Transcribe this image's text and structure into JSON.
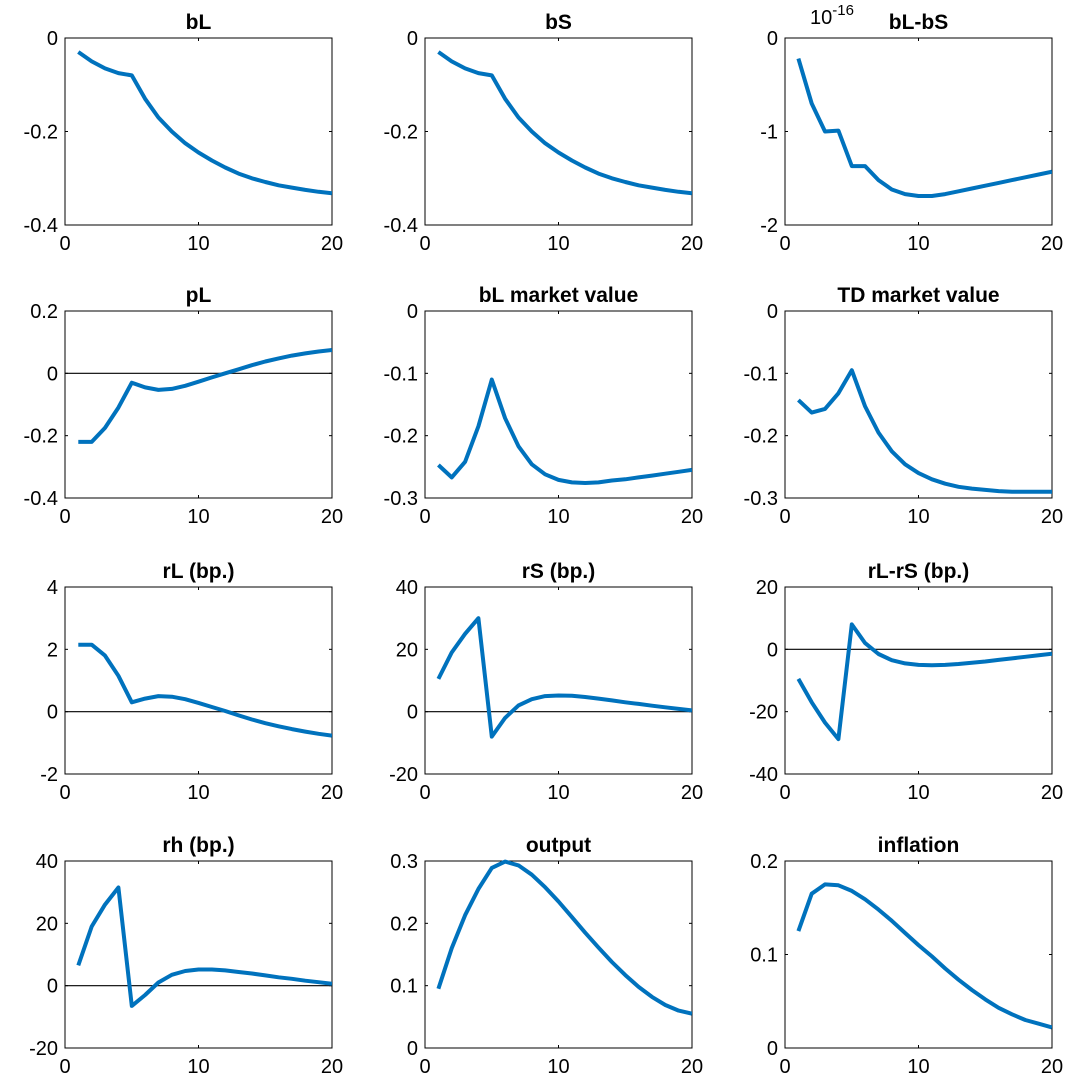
{
  "colors": {
    "series": "#0072BD",
    "axes": "#000000",
    "zero_line": "#000000",
    "background": "#ffffff"
  },
  "chart_data": [
    {
      "type": "line",
      "title": "bL",
      "xlabel": "",
      "ylabel": "",
      "xlim": [
        0,
        20
      ],
      "ylim": [
        -0.4,
        0
      ],
      "xticks": [
        "0",
        "10",
        "20"
      ],
      "yticks": [
        "-0.4",
        "-0.2",
        "0"
      ],
      "exponent": "",
      "zero_line": false,
      "series": [
        {
          "x": [
            1,
            2,
            3,
            4,
            5,
            6,
            7,
            8,
            9,
            10,
            11,
            12,
            13,
            14,
            15,
            16,
            17,
            18,
            19,
            20
          ],
          "values": [
            -0.03,
            -0.05,
            -0.065,
            -0.075,
            -0.08,
            -0.13,
            -0.17,
            -0.2,
            -0.225,
            -0.245,
            -0.262,
            -0.277,
            -0.29,
            -0.3,
            -0.308,
            -0.315,
            -0.32,
            -0.325,
            -0.329,
            -0.332
          ]
        }
      ]
    },
    {
      "type": "line",
      "title": "bS",
      "xlabel": "",
      "ylabel": "",
      "xlim": [
        0,
        20
      ],
      "ylim": [
        -0.4,
        0
      ],
      "xticks": [
        "0",
        "10",
        "20"
      ],
      "yticks": [
        "-0.4",
        "-0.2",
        "0"
      ],
      "exponent": "",
      "zero_line": false,
      "series": [
        {
          "x": [
            1,
            2,
            3,
            4,
            5,
            6,
            7,
            8,
            9,
            10,
            11,
            12,
            13,
            14,
            15,
            16,
            17,
            18,
            19,
            20
          ],
          "values": [
            -0.03,
            -0.05,
            -0.065,
            -0.075,
            -0.08,
            -0.13,
            -0.17,
            -0.2,
            -0.225,
            -0.245,
            -0.262,
            -0.277,
            -0.29,
            -0.3,
            -0.308,
            -0.315,
            -0.32,
            -0.325,
            -0.329,
            -0.332
          ]
        }
      ]
    },
    {
      "type": "line",
      "title": "bL-bS",
      "xlabel": "",
      "ylabel": "",
      "xlim": [
        0,
        20
      ],
      "ylim": [
        -2,
        0
      ],
      "xticks": [
        "0",
        "10",
        "20"
      ],
      "yticks": [
        "-2",
        "-1",
        "0"
      ],
      "exponent": "-16",
      "zero_line": false,
      "series": [
        {
          "x": [
            1,
            2,
            3,
            4,
            5,
            6,
            7,
            8,
            9,
            10,
            11,
            12,
            13,
            14,
            15,
            16,
            17,
            18,
            19,
            20
          ],
          "values": [
            -0.22,
            -0.7,
            -1.0,
            -0.99,
            -1.37,
            -1.37,
            -1.52,
            -1.62,
            -1.67,
            -1.69,
            -1.69,
            -1.67,
            -1.64,
            -1.61,
            -1.58,
            -1.55,
            -1.52,
            -1.49,
            -1.46,
            -1.43
          ]
        }
      ]
    },
    {
      "type": "line",
      "title": "pL",
      "xlabel": "",
      "ylabel": "",
      "xlim": [
        0,
        20
      ],
      "ylim": [
        -0.4,
        0.2
      ],
      "xticks": [
        "0",
        "10",
        "20"
      ],
      "yticks": [
        "-0.4",
        "-0.2",
        "0",
        "0.2"
      ],
      "exponent": "",
      "zero_line": true,
      "series": [
        {
          "x": [
            1,
            2,
            3,
            4,
            5,
            6,
            7,
            8,
            9,
            10,
            11,
            12,
            13,
            14,
            15,
            16,
            17,
            18,
            19,
            20
          ],
          "values": [
            -0.22,
            -0.22,
            -0.175,
            -0.11,
            -0.03,
            -0.045,
            -0.053,
            -0.05,
            -0.04,
            -0.027,
            -0.013,
            0.0,
            0.013,
            0.026,
            0.038,
            0.048,
            0.057,
            0.064,
            0.07,
            0.075
          ]
        }
      ]
    },
    {
      "type": "line",
      "title": "bL market value",
      "xlabel": "",
      "ylabel": "",
      "xlim": [
        0,
        20
      ],
      "ylim": [
        -0.3,
        0
      ],
      "xticks": [
        "0",
        "10",
        "20"
      ],
      "yticks": [
        "-0.3",
        "-0.2",
        "-0.1",
        "0"
      ],
      "exponent": "",
      "zero_line": false,
      "series": [
        {
          "x": [
            1,
            2,
            3,
            4,
            5,
            6,
            7,
            8,
            9,
            10,
            11,
            12,
            13,
            14,
            15,
            16,
            17,
            18,
            19,
            20
          ],
          "values": [
            -0.247,
            -0.267,
            -0.242,
            -0.185,
            -0.11,
            -0.172,
            -0.217,
            -0.246,
            -0.262,
            -0.271,
            -0.275,
            -0.276,
            -0.275,
            -0.272,
            -0.27,
            -0.267,
            -0.264,
            -0.261,
            -0.258,
            -0.255
          ]
        }
      ]
    },
    {
      "type": "line",
      "title": "TD market value",
      "xlabel": "",
      "ylabel": "",
      "xlim": [
        0,
        20
      ],
      "ylim": [
        -0.3,
        0
      ],
      "xticks": [
        "0",
        "10",
        "20"
      ],
      "yticks": [
        "-0.3",
        "-0.2",
        "-0.1",
        "0"
      ],
      "exponent": "",
      "zero_line": false,
      "series": [
        {
          "x": [
            1,
            2,
            3,
            4,
            5,
            6,
            7,
            8,
            9,
            10,
            11,
            12,
            13,
            14,
            15,
            16,
            17,
            18,
            19,
            20
          ],
          "values": [
            -0.143,
            -0.163,
            -0.157,
            -0.132,
            -0.095,
            -0.153,
            -0.195,
            -0.225,
            -0.246,
            -0.26,
            -0.27,
            -0.277,
            -0.282,
            -0.285,
            -0.287,
            -0.289,
            -0.29,
            -0.29,
            -0.29,
            -0.29
          ]
        }
      ]
    },
    {
      "type": "line",
      "title": "rL (bp.)",
      "xlabel": "",
      "ylabel": "",
      "xlim": [
        0,
        20
      ],
      "ylim": [
        -2,
        4
      ],
      "xticks": [
        "0",
        "10",
        "20"
      ],
      "yticks": [
        "-2",
        "0",
        "2",
        "4"
      ],
      "exponent": "",
      "zero_line": true,
      "series": [
        {
          "x": [
            1,
            2,
            3,
            4,
            5,
            6,
            7,
            8,
            9,
            10,
            11,
            12,
            13,
            14,
            15,
            16,
            17,
            18,
            19,
            20
          ],
          "values": [
            2.15,
            2.15,
            1.8,
            1.15,
            0.3,
            0.42,
            0.5,
            0.48,
            0.4,
            0.28,
            0.15,
            0.02,
            -0.12,
            -0.25,
            -0.37,
            -0.47,
            -0.56,
            -0.64,
            -0.71,
            -0.77
          ]
        }
      ]
    },
    {
      "type": "line",
      "title": "rS (bp.)",
      "xlabel": "",
      "ylabel": "",
      "xlim": [
        0,
        20
      ],
      "ylim": [
        -20,
        40
      ],
      "xticks": [
        "0",
        "10",
        "20"
      ],
      "yticks": [
        "-20",
        "0",
        "20",
        "40"
      ],
      "exponent": "",
      "zero_line": true,
      "series": [
        {
          "x": [
            1,
            2,
            3,
            4,
            5,
            6,
            7,
            8,
            9,
            10,
            11,
            12,
            13,
            14,
            15,
            16,
            17,
            18,
            19,
            20
          ],
          "values": [
            10.5,
            19,
            25,
            30,
            -8,
            -2,
            2,
            4,
            5,
            5.2,
            5.1,
            4.7,
            4.2,
            3.6,
            3.0,
            2.5,
            1.9,
            1.4,
            0.9,
            0.4
          ]
        }
      ]
    },
    {
      "type": "line",
      "title": "rL-rS (bp.)",
      "xlabel": "",
      "ylabel": "",
      "xlim": [
        0,
        20
      ],
      "ylim": [
        -40,
        20
      ],
      "xticks": [
        "0",
        "10",
        "20"
      ],
      "yticks": [
        "-40",
        "-20",
        "0",
        "20"
      ],
      "exponent": "",
      "zero_line": true,
      "series": [
        {
          "x": [
            1,
            2,
            3,
            4,
            5,
            6,
            7,
            8,
            9,
            10,
            11,
            12,
            13,
            14,
            15,
            16,
            17,
            18,
            19,
            20
          ],
          "values": [
            -9.5,
            -17,
            -23.5,
            -28.8,
            8,
            2,
            -1.5,
            -3.5,
            -4.5,
            -5,
            -5.1,
            -5,
            -4.7,
            -4.3,
            -3.9,
            -3.4,
            -2.9,
            -2.4,
            -1.9,
            -1.4
          ]
        }
      ]
    },
    {
      "type": "line",
      "title": "rh (bp.)",
      "xlabel": "",
      "ylabel": "",
      "xlim": [
        0,
        20
      ],
      "ylim": [
        -20,
        40
      ],
      "xticks": [
        "0",
        "10",
        "20"
      ],
      "yticks": [
        "-20",
        "0",
        "20",
        "40"
      ],
      "exponent": "",
      "zero_line": true,
      "series": [
        {
          "x": [
            1,
            2,
            3,
            4,
            5,
            6,
            7,
            8,
            9,
            10,
            11,
            12,
            13,
            14,
            15,
            16,
            17,
            18,
            19,
            20
          ],
          "values": [
            6.5,
            19,
            26,
            31.5,
            -6.5,
            -3,
            1,
            3.5,
            4.7,
            5.2,
            5.2,
            4.9,
            4.4,
            3.9,
            3.3,
            2.7,
            2.2,
            1.6,
            1.1,
            0.6
          ]
        }
      ]
    },
    {
      "type": "line",
      "title": "output",
      "xlabel": "",
      "ylabel": "",
      "xlim": [
        0,
        20
      ],
      "ylim": [
        0,
        0.3
      ],
      "xticks": [
        "0",
        "10",
        "20"
      ],
      "yticks": [
        "0",
        "0.1",
        "0.2",
        "0.3"
      ],
      "exponent": "",
      "zero_line": false,
      "series": [
        {
          "x": [
            1,
            2,
            3,
            4,
            5,
            6,
            7,
            8,
            9,
            10,
            11,
            12,
            13,
            14,
            15,
            16,
            17,
            18,
            19,
            20
          ],
          "values": [
            0.095,
            0.16,
            0.213,
            0.255,
            0.289,
            0.299,
            0.293,
            0.278,
            0.258,
            0.235,
            0.21,
            0.185,
            0.161,
            0.138,
            0.117,
            0.098,
            0.082,
            0.069,
            0.06,
            0.055
          ]
        }
      ]
    },
    {
      "type": "line",
      "title": "inflation",
      "xlabel": "",
      "ylabel": "",
      "xlim": [
        0,
        20
      ],
      "ylim": [
        0,
        0.2
      ],
      "xticks": [
        "0",
        "10",
        "20"
      ],
      "yticks": [
        "0",
        "0.1",
        "0.2"
      ],
      "exponent": "",
      "zero_line": false,
      "series": [
        {
          "x": [
            1,
            2,
            3,
            4,
            5,
            6,
            7,
            8,
            9,
            10,
            11,
            12,
            13,
            14,
            15,
            16,
            17,
            18,
            19,
            20
          ],
          "values": [
            0.125,
            0.165,
            0.175,
            0.174,
            0.168,
            0.159,
            0.148,
            0.136,
            0.123,
            0.11,
            0.098,
            0.085,
            0.073,
            0.062,
            0.052,
            0.043,
            0.036,
            0.03,
            0.026,
            0.022
          ]
        }
      ]
    }
  ]
}
